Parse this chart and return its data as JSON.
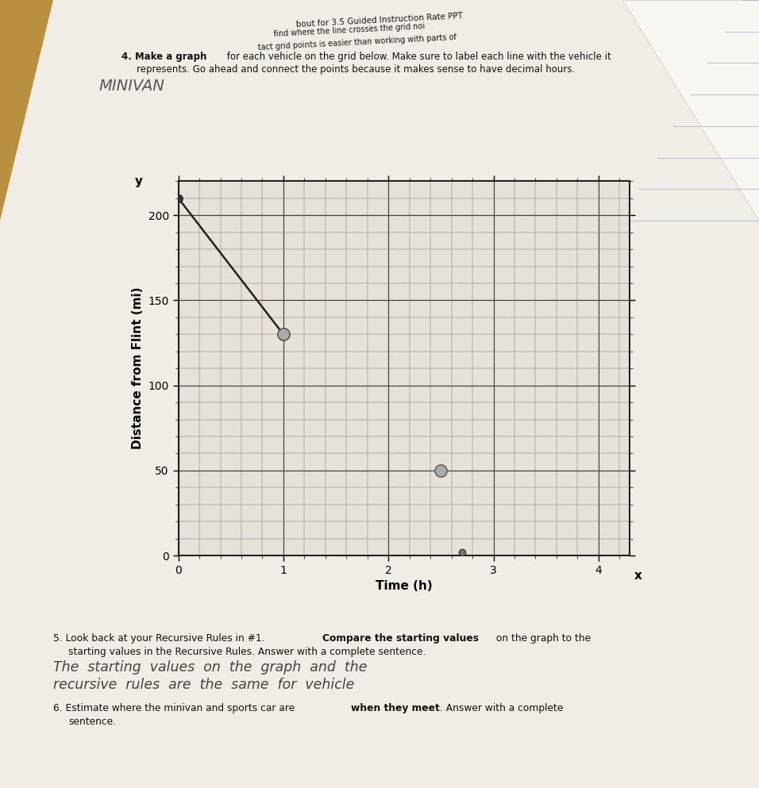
{
  "paper_color": "#f0ece6",
  "wood_color_lt": "#c8a050",
  "wood_color_dk": "#8B6510",
  "graph_bg": "#e8e4de",
  "grid_major_color": "#555555",
  "grid_minor_color": "#888888",
  "xlim": [
    0,
    4.3
  ],
  "ylim": [
    0,
    220
  ],
  "xticks": [
    0,
    1,
    2,
    3,
    4
  ],
  "yticks": [
    0,
    50,
    100,
    150,
    200
  ],
  "x_minor": 0.2,
  "y_minor": 10,
  "xlabel": "Time (h)",
  "ylabel": "Distance from Flint (mi)",
  "line1_x": [
    0,
    1
  ],
  "line1_y": [
    210,
    130
  ],
  "dot1_x": 0,
  "dot1_y": 210,
  "dot2_x": 1,
  "dot2_y": 130,
  "dot3_x": 2.5,
  "dot3_y": 50,
  "dot4_x": 2.7,
  "dot4_y": 2
}
